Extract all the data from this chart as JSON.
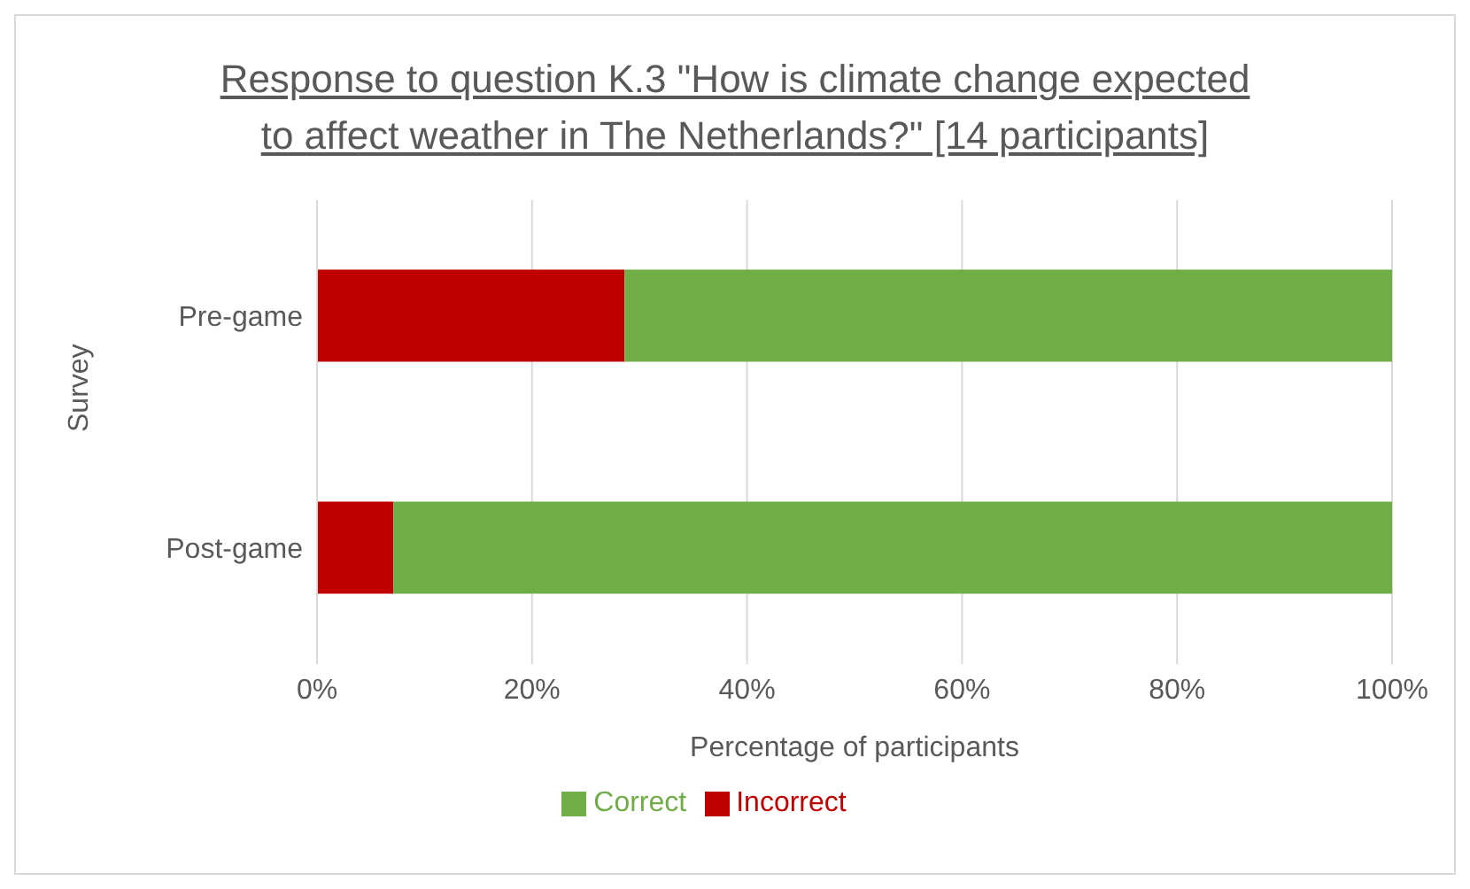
{
  "chart_data": {
    "type": "bar",
    "orientation": "horizontal",
    "stacked": true,
    "title": "Response to question K.3 \"How is climate change expected to affect weather in The Netherlands?\" [14 participants]",
    "xlabel": "Percentage of participants",
    "ylabel": "Survey",
    "categories": [
      "Pre-game",
      "Post-game"
    ],
    "series": [
      {
        "name": "Incorrect",
        "color": "#c00000",
        "values": [
          28.6,
          7.1
        ]
      },
      {
        "name": "Correct",
        "color": "#70ad47",
        "values": [
          71.4,
          92.9
        ]
      }
    ],
    "xlim": [
      0,
      100
    ],
    "xticks": [
      {
        "value": 0,
        "label": "0%"
      },
      {
        "value": 20,
        "label": "20%"
      },
      {
        "value": 40,
        "label": "40%"
      },
      {
        "value": 60,
        "label": "60%"
      },
      {
        "value": 80,
        "label": "80%"
      },
      {
        "value": 100,
        "label": "100%"
      }
    ],
    "grid": "x",
    "legend": "bottom"
  }
}
